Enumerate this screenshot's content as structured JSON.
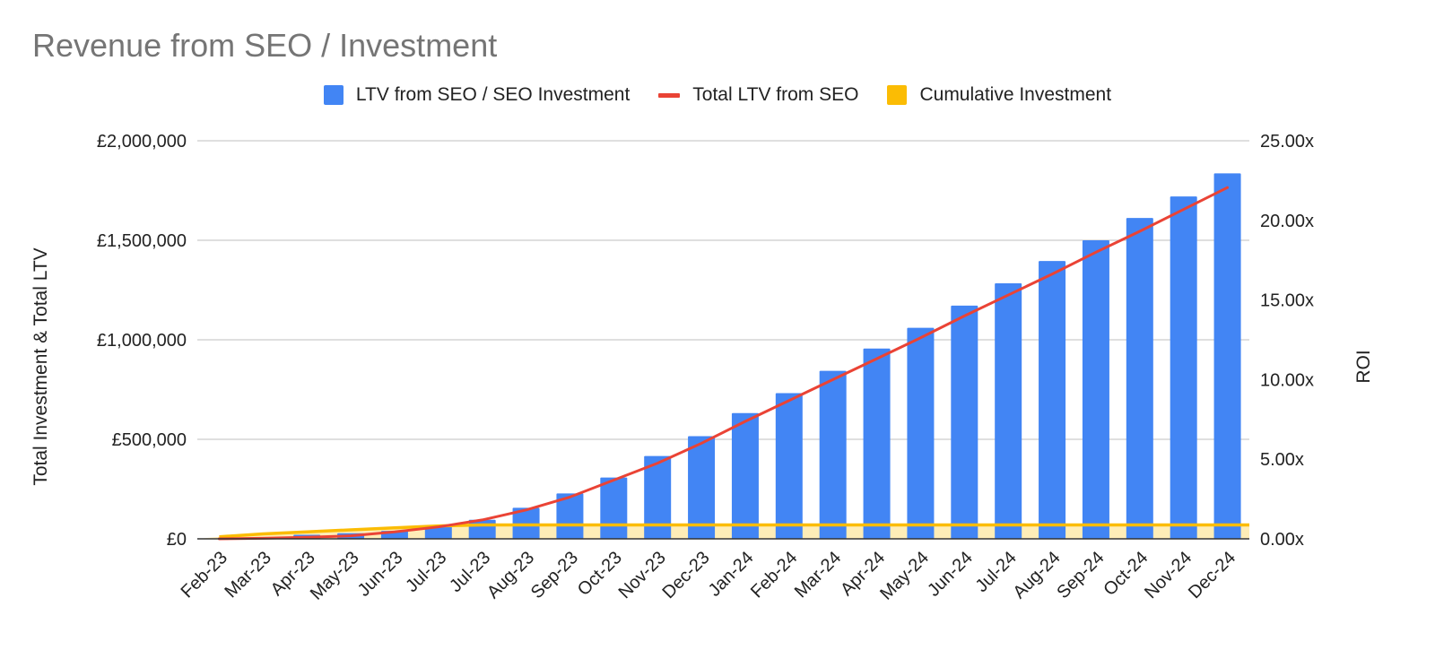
{
  "chart_data": {
    "type": "bar",
    "title": "Revenue from SEO / Investment",
    "legend_position": "top",
    "grid": true,
    "categories": [
      "Feb-23",
      "Mar-23",
      "Apr-23",
      "May-23",
      "Jun-23",
      "Jul-23",
      "Jul-23",
      "Aug-23",
      "Sep-23",
      "Oct-23",
      "Nov-23",
      "Dec-23",
      "Jan-24",
      "Feb-24",
      "Mar-24",
      "Apr-24",
      "May-24",
      "Jun-24",
      "Jul-24",
      "Aug-24",
      "Sep-24",
      "Oct-24",
      "Nov-24",
      "Dec-24"
    ],
    "y_left": {
      "label": "Total Investment & Total LTV",
      "range": [
        0,
        2000000
      ],
      "ticks": [
        0,
        500000,
        1000000,
        1500000,
        2000000
      ],
      "tick_labels": [
        "£0",
        "£500,000",
        "£1,000,000",
        "£1,500,000",
        "£2,000,000"
      ]
    },
    "y_right": {
      "label": "ROI",
      "range": [
        0,
        25
      ],
      "ticks": [
        0,
        5,
        10,
        15,
        20,
        25
      ],
      "tick_labels": [
        "0.00x",
        "5.00x",
        "10.00x",
        "15.00x",
        "20.00x",
        "25.00x"
      ]
    },
    "series": [
      {
        "name": "LTV from SEO / SEO Investment",
        "type": "bar",
        "axis": "right",
        "color": "#4285F4",
        "values": [
          0.02,
          0.1,
          0.25,
          0.35,
          0.5,
          0.85,
          1.2,
          1.95,
          2.85,
          3.85,
          5.2,
          6.45,
          7.9,
          9.15,
          10.55,
          11.95,
          13.25,
          14.65,
          16.05,
          17.45,
          18.75,
          20.15,
          21.5,
          22.95
        ]
      },
      {
        "name": "Total LTV from SEO",
        "type": "line",
        "axis": "left",
        "color": "#EA4335",
        "values": [
          0,
          3000,
          8000,
          15000,
          35000,
          60000,
          95000,
          145000,
          210000,
          295000,
          380000,
          480000,
          590000,
          695000,
          800000,
          905000,
          1010000,
          1120000,
          1225000,
          1330000,
          1440000,
          1545000,
          1655000,
          1765000
        ]
      },
      {
        "name": "Cumulative Investment",
        "type": "area",
        "axis": "left",
        "color": "#FBBC04",
        "values": [
          10000,
          25000,
          35000,
          45000,
          55000,
          65000,
          70000,
          70000,
          70000,
          70000,
          70000,
          70000,
          70000,
          70000,
          70000,
          70000,
          70000,
          70000,
          70000,
          70000,
          70000,
          70000,
          70000,
          70000
        ]
      }
    ]
  }
}
